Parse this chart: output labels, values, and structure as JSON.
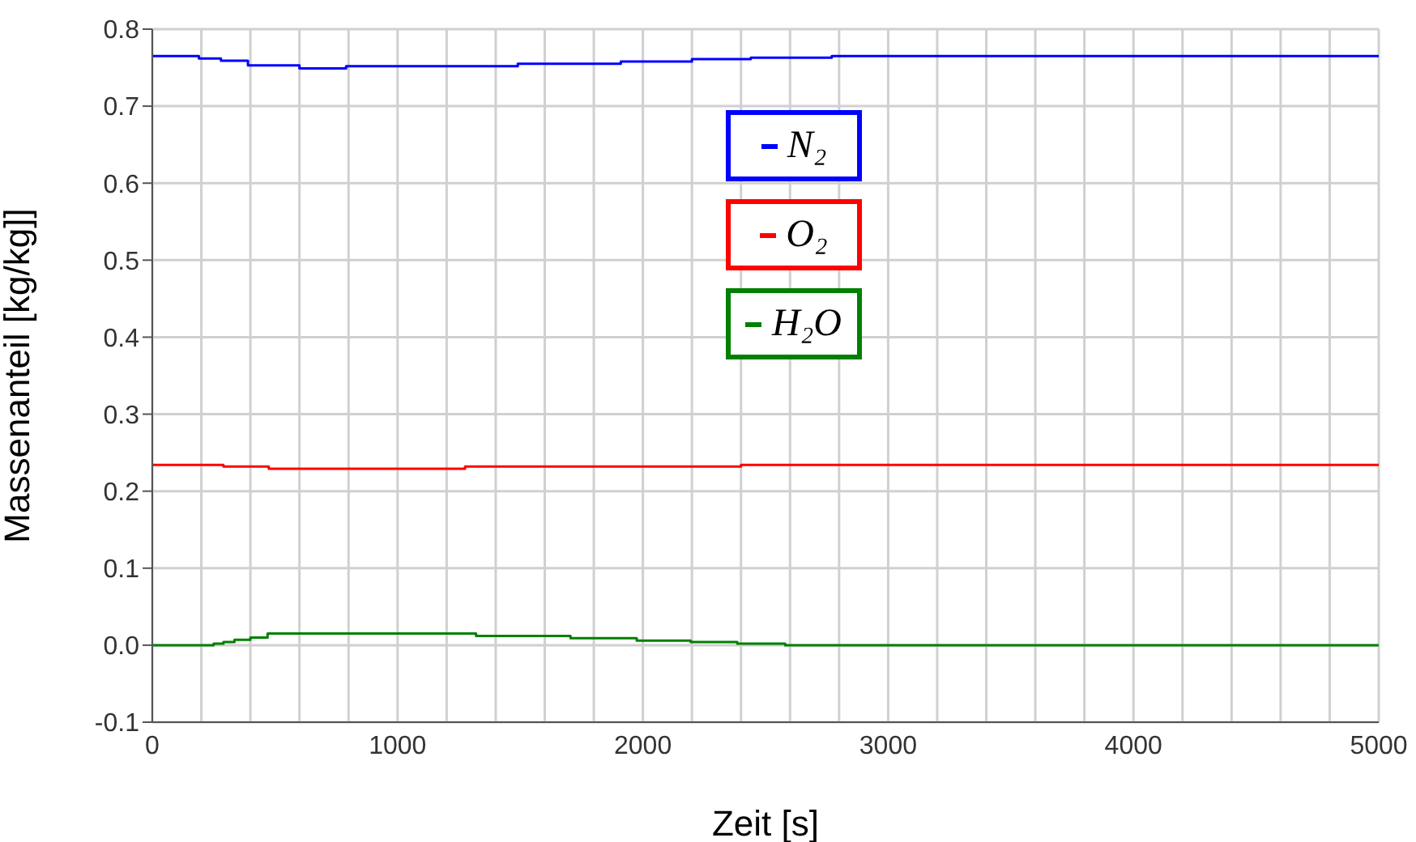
{
  "chart_data": {
    "type": "step",
    "xlabel": "Zeit [s]",
    "ylabel": "Massenanteil [kg/kg]]",
    "xlim": [
      0,
      5000
    ],
    "ylim": [
      -0.1,
      0.8
    ],
    "xticks": [
      0,
      {
        "value": 200,
        "label": null
      },
      {
        "value": 400,
        "label": null
      },
      {
        "value": 600,
        "label": null
      },
      {
        "value": 800,
        "label": null
      },
      1000,
      {
        "value": 1200,
        "label": null
      },
      {
        "value": 1400,
        "label": null
      },
      {
        "value": 1600,
        "label": null
      },
      {
        "value": 1800,
        "label": null
      },
      2000,
      {
        "value": 2200,
        "label": null
      },
      {
        "value": 2400,
        "label": null
      },
      {
        "value": 2600,
        "label": null
      },
      {
        "value": 2800,
        "label": null
      },
      3000,
      {
        "value": 3200,
        "label": null
      },
      {
        "value": 3400,
        "label": null
      },
      {
        "value": 3600,
        "label": null
      },
      {
        "value": 3800,
        "label": null
      },
      4000,
      {
        "value": 4200,
        "label": null
      },
      {
        "value": 4400,
        "label": null
      },
      {
        "value": 4600,
        "label": null
      },
      {
        "value": 4800,
        "label": null
      },
      5000
    ],
    "yticks": [
      {
        "value": -0.1,
        "label": "-0.1"
      },
      {
        "value": 0,
        "label": "0.0"
      },
      0.1,
      0.2,
      0.3,
      0.4,
      0.5,
      0.6,
      0.7,
      0.8
    ],
    "grid": true,
    "legend": "top",
    "line_style": "solid",
    "marker": "none",
    "series": [
      {
        "name": "N₂",
        "color": "#0000ff",
        "x": [
          0,
          190,
          280,
          390,
          600,
          790,
          1490,
          1910,
          2200,
          2440,
          2770,
          5000
        ],
        "values": [
          0.765,
          0.762,
          0.759,
          0.753,
          0.749,
          0.752,
          0.755,
          0.758,
          0.761,
          0.763,
          0.765,
          0.765
        ]
      },
      {
        "name": "O₂",
        "color": "#ff0000",
        "x": [
          0,
          290,
          475,
          1275,
          2400,
          5000
        ],
        "values": [
          0.234,
          0.232,
          0.229,
          0.232,
          0.234,
          0.234
        ]
      },
      {
        "name": "H₂O",
        "color": "#008000",
        "x": [
          0,
          250,
          290,
          335,
          400,
          470,
          1320,
          1705,
          1975,
          2195,
          2385,
          2580,
          5000
        ],
        "values": [
          0,
          0.002,
          0.004,
          0.007,
          0.01,
          0.015,
          0.012,
          0.009,
          0.006,
          0.004,
          0.002,
          0,
          0
        ]
      }
    ]
  }
}
